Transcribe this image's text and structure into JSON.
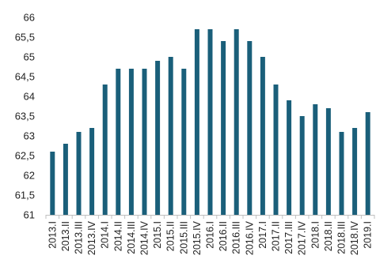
{
  "chart_data": {
    "type": "bar",
    "title": "",
    "xlabel": "",
    "ylabel": "",
    "ylim": [
      61,
      66
    ],
    "yticks": [
      "61",
      "61,5",
      "62",
      "62,5",
      "63",
      "63,5",
      "64",
      "64,5",
      "65",
      "65,5",
      "66"
    ],
    "ytick_values": [
      61,
      61.5,
      62,
      62.5,
      63,
      63.5,
      64,
      64.5,
      65,
      65.5,
      66
    ],
    "grid": false,
    "legend": "none",
    "bar_color": "#1a5f7a",
    "categories": [
      "2013.I",
      "2013.II",
      "2013.III",
      "2013.IV",
      "2014.I",
      "2014.II",
      "2014.III",
      "2014.IV",
      "2015.I",
      "2015.II",
      "2015.III",
      "2015.IV",
      "2016.I",
      "2016.II",
      "2016.III",
      "2016.IV",
      "2017.I",
      "2017.II",
      "2017.III",
      "2017.IV",
      "2018.I",
      "2018.II",
      "2018.III",
      "2018.IV",
      "2019.I"
    ],
    "values": [
      62.6,
      62.8,
      63.1,
      63.2,
      64.3,
      64.7,
      64.7,
      64.7,
      64.9,
      65.0,
      64.7,
      65.7,
      65.7,
      65.4,
      65.7,
      65.4,
      65.0,
      64.3,
      63.9,
      63.5,
      63.8,
      63.7,
      63.1,
      63.2,
      63.6
    ]
  }
}
